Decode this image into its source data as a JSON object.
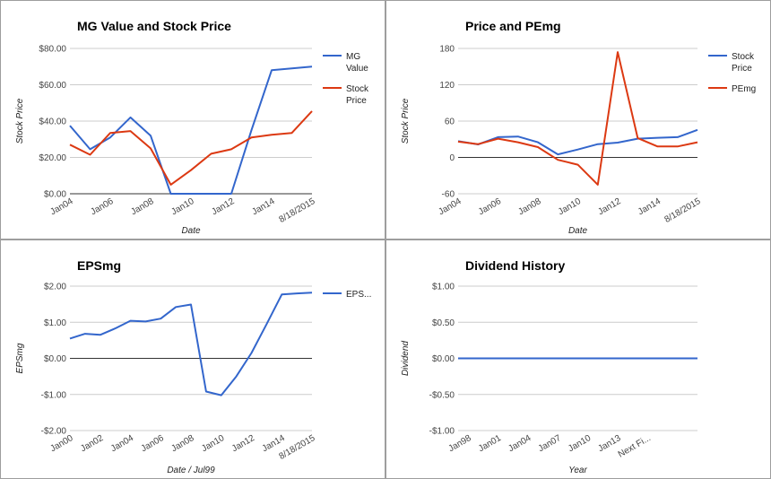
{
  "chart_data": [
    {
      "type": "line",
      "title": "MG Value and Stock Price",
      "xlabel": "Date",
      "ylabel": "Stock Price",
      "y_ticks": [
        "$0.00",
        "$20.00",
        "$40.00",
        "$60.00",
        "$80.00"
      ],
      "ylim": [
        0,
        80
      ],
      "x_tick_labels": [
        "Jan04",
        "Jan06",
        "Jan08",
        "Jan10",
        "Jan12",
        "Jan14",
        "8/18/2015"
      ],
      "x_tick_index": [
        0,
        2,
        4,
        6,
        8,
        10,
        12
      ],
      "grid": true,
      "legend": "right",
      "series": [
        {
          "name": "MG Value",
          "color": "#3366cc",
          "values": [
            37.5,
            24.5,
            31,
            42,
            32,
            0,
            0,
            0,
            0,
            35,
            68,
            69,
            70
          ]
        },
        {
          "name": "Stock Price",
          "color": "#dc3912",
          "values": [
            27,
            21.5,
            33.5,
            34.5,
            25,
            5,
            13,
            22,
            24.5,
            31,
            32.5,
            33.5,
            45.5
          ]
        }
      ]
    },
    {
      "type": "line",
      "title": "Price and PEmg",
      "xlabel": "Date",
      "ylabel": "Stock Price",
      "y_ticks": [
        "-60",
        "0",
        "60",
        "120",
        "180"
      ],
      "ylim": [
        -60,
        180
      ],
      "x_tick_labels": [
        "Jan04",
        "Jan06",
        "Jan08",
        "Jan10",
        "Jan12",
        "Jan14",
        "8/18/2015"
      ],
      "x_tick_index": [
        0,
        2,
        4,
        6,
        8,
        10,
        12
      ],
      "grid": true,
      "zero_line": true,
      "legend": "right",
      "series": [
        {
          "name": "Stock Price",
          "color": "#3366cc",
          "values": [
            27,
            21.5,
            33.5,
            34.5,
            25,
            5,
            13,
            22,
            24.5,
            31,
            32.5,
            33.5,
            45.5
          ]
        },
        {
          "name": "PEmg",
          "color": "#dc3912",
          "values": [
            26,
            22,
            31,
            25,
            17,
            -4,
            -12,
            -45,
            174,
            32,
            18,
            18,
            25
          ]
        }
      ]
    },
    {
      "type": "line",
      "title": "EPSmg",
      "xlabel": "Date / Jul99",
      "ylabel": "EPSmg",
      "y_ticks": [
        "-$2.00",
        "-$1.00",
        "$0.00",
        "$1.00",
        "$2.00"
      ],
      "ylim": [
        -2,
        2
      ],
      "x_tick_labels": [
        "Jan00",
        "Jan02",
        "Jan04",
        "Jan06",
        "Jan08",
        "Jan10",
        "Jan12",
        "Jan14",
        "8/18/2015"
      ],
      "x_tick_index": [
        0,
        2,
        4,
        6,
        8,
        10,
        12,
        14,
        16
      ],
      "grid": true,
      "zero_line": true,
      "legend": "right",
      "series": [
        {
          "name": "EPS...",
          "color": "#3366cc",
          "values": [
            0.55,
            0.68,
            0.65,
            0.83,
            1.04,
            1.02,
            1.1,
            1.42,
            1.49,
            -0.92,
            -1.02,
            -0.5,
            0.15,
            0.95,
            1.77,
            1.8,
            1.82
          ]
        }
      ]
    },
    {
      "type": "line",
      "title": "Dividend History",
      "xlabel": "Year",
      "ylabel": "Dividend",
      "y_ticks": [
        "-$1.00",
        "-$0.50",
        "$0.00",
        "$0.50",
        "$1.00"
      ],
      "ylim": [
        -1,
        1
      ],
      "x_tick_labels": [
        "Jan98",
        "Jan01",
        "Jan04",
        "Jan07",
        "Jan10",
        "Jan13",
        "Next Fi..."
      ],
      "x_tick_index": [
        1,
        4,
        7,
        10,
        13,
        16,
        19
      ],
      "grid": true,
      "zero_line": true,
      "legend": "none",
      "series": [
        {
          "name": "Dividend",
          "color": "#3366cc",
          "values": [
            0,
            0,
            0,
            0,
            0,
            0,
            0,
            0,
            0,
            0,
            0,
            0,
            0,
            0,
            0,
            0,
            0,
            0,
            0,
            0,
            0,
            0,
            0,
            0,
            0
          ]
        }
      ]
    }
  ]
}
